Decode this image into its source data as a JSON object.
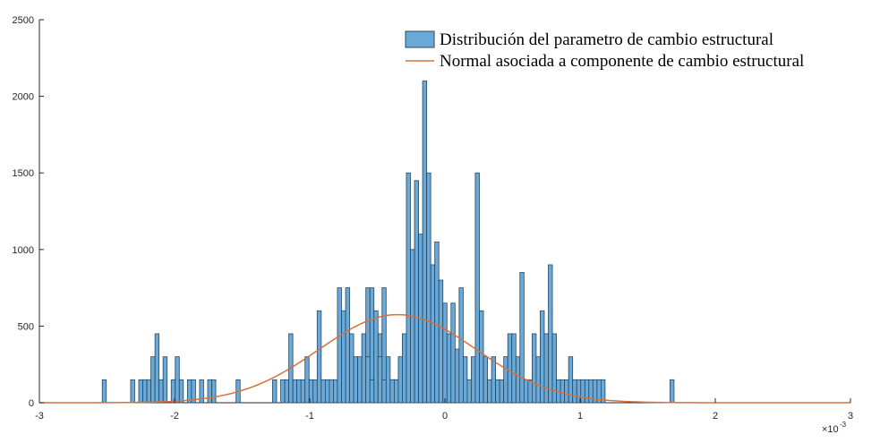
{
  "chart_data": {
    "type": "bar",
    "title": "",
    "xlabel": "",
    "ylabel": "",
    "xlim": [
      -0.003,
      0.003
    ],
    "ylim": [
      0,
      2500
    ],
    "x_exponent_label": "×10",
    "x_exponent_power": "-3",
    "x_ticks": [
      -3,
      -2,
      -1,
      0,
      1,
      2,
      3
    ],
    "y_ticks": [
      0,
      500,
      1000,
      1500,
      2000,
      2500
    ],
    "grid": false,
    "legend_position": "top-right",
    "bin_width": 3e-05,
    "series": [
      {
        "name": "Distribución del parametro de cambio estructural",
        "kind": "histogram",
        "color": "#6aa9d8",
        "edge_color": "#26465f",
        "bins": [
          [
            -0.00252,
            150
          ],
          [
            -0.00231,
            150
          ],
          [
            -0.00225,
            150
          ],
          [
            -0.00222,
            150
          ],
          [
            -0.00219,
            150
          ],
          [
            -0.00216,
            300
          ],
          [
            -0.00213,
            450
          ],
          [
            -0.0021,
            150
          ],
          [
            -0.00207,
            300
          ],
          [
            -0.00201,
            150
          ],
          [
            -0.00198,
            300
          ],
          [
            -0.00195,
            150
          ],
          [
            -0.00189,
            150
          ],
          [
            -0.00186,
            150
          ],
          [
            -0.0018,
            150
          ],
          [
            -0.00174,
            150
          ],
          [
            -0.00171,
            150
          ],
          [
            -0.00153,
            150
          ],
          [
            -0.00126,
            150
          ],
          [
            -0.0012,
            150
          ],
          [
            -0.00117,
            150
          ],
          [
            -0.00114,
            450
          ],
          [
            -0.00111,
            150
          ],
          [
            -0.00108,
            150
          ],
          [
            -0.00105,
            150
          ],
          [
            -0.00102,
            300
          ],
          [
            -0.00099,
            150
          ],
          [
            -0.00096,
            150
          ],
          [
            -0.00093,
            600
          ],
          [
            -0.0009,
            150
          ],
          [
            -0.00087,
            150
          ],
          [
            -0.00084,
            150
          ],
          [
            -0.00081,
            150
          ],
          [
            -0.00078,
            150
          ],
          [
            -0.00075,
            300
          ],
          [
            -0.00072,
            150
          ],
          [
            -0.00069,
            150
          ],
          [
            -0.00066,
            150
          ],
          [
            -0.00063,
            150
          ],
          [
            -0.0006,
            150
          ],
          [
            -0.00057,
            750
          ],
          [
            -0.00054,
            750
          ],
          [
            -0.00051,
            600
          ],
          [
            -0.00048,
            450
          ],
          [
            -0.00045,
            750
          ],
          [
            -0.00042,
            150
          ],
          [
            -0.00039,
            150
          ],
          [
            -0.00036,
            150
          ],
          [
            -0.00033,
            150
          ],
          [
            -0.0003,
            150
          ],
          [
            -0.00027,
            150
          ],
          [
            -0.00024,
            150
          ],
          [
            -0.00021,
            150
          ],
          [
            -0.00018,
            150
          ],
          [
            -0.00015,
            150
          ],
          [
            -0.00012,
            150
          ],
          [
            -9e-05,
            150
          ],
          [
            -6e-05,
            150
          ],
          [
            -3e-05,
            150
          ],
          [
            0.0,
            150
          ],
          [
            -0.00078,
            750
          ],
          [
            -0.00075,
            600
          ],
          [
            -0.00072,
            750
          ],
          [
            -0.00069,
            450
          ],
          [
            -0.00066,
            300
          ],
          [
            -0.00063,
            300
          ],
          [
            -0.0006,
            450
          ],
          [
            -0.00057,
            300
          ],
          [
            -0.00054,
            150
          ],
          [
            -0.00048,
            300
          ],
          [
            -0.00045,
            150
          ],
          [
            -0.00042,
            300
          ],
          [
            -0.00039,
            150
          ],
          [
            -0.00036,
            150
          ],
          [
            -0.00033,
            300
          ],
          [
            -0.0003,
            450
          ],
          [
            -0.00027,
            1500
          ],
          [
            -0.00024,
            1000
          ],
          [
            -0.00021,
            1450
          ],
          [
            -0.00018,
            1100
          ],
          [
            -0.00015,
            2100
          ],
          [
            -0.00012,
            1500
          ],
          [
            -9e-05,
            900
          ],
          [
            -6e-05,
            1050
          ],
          [
            -3e-05,
            800
          ],
          [
            0.0,
            650
          ],
          [
            3e-05,
            450
          ],
          [
            6e-05,
            650
          ],
          [
            9e-05,
            350
          ],
          [
            0.00012,
            750
          ],
          [
            0.00015,
            300
          ],
          [
            0.00018,
            150
          ],
          [
            0.00021,
            300
          ],
          [
            0.00024,
            1500
          ],
          [
            0.00027,
            600
          ],
          [
            0.0003,
            300
          ],
          [
            0.00033,
            150
          ],
          [
            0.00036,
            300
          ],
          [
            0.00039,
            150
          ],
          [
            0.00042,
            150
          ],
          [
            0.00045,
            300
          ],
          [
            0.00048,
            450
          ],
          [
            0.00051,
            450
          ],
          [
            0.00054,
            300
          ],
          [
            0.00057,
            850
          ],
          [
            0.0006,
            150
          ],
          [
            0.00063,
            150
          ],
          [
            0.00066,
            450
          ],
          [
            0.00069,
            300
          ],
          [
            0.00072,
            600
          ],
          [
            0.00075,
            450
          ],
          [
            0.00078,
            900
          ],
          [
            0.00081,
            450
          ],
          [
            0.00084,
            150
          ],
          [
            0.00087,
            150
          ],
          [
            0.0009,
            150
          ],
          [
            0.00093,
            300
          ],
          [
            0.00096,
            150
          ],
          [
            0.00099,
            150
          ],
          [
            0.00102,
            150
          ],
          [
            0.00105,
            150
          ],
          [
            0.00108,
            150
          ],
          [
            0.00111,
            150
          ],
          [
            0.00114,
            150
          ],
          [
            0.00117,
            150
          ],
          [
            0.00168,
            150
          ]
        ]
      },
      {
        "name": "Normal asociada a componente de cambio estructural",
        "kind": "normal-curve",
        "color": "#d9703a",
        "mean": -0.00035,
        "std": 0.00058,
        "peak": 575
      }
    ]
  }
}
